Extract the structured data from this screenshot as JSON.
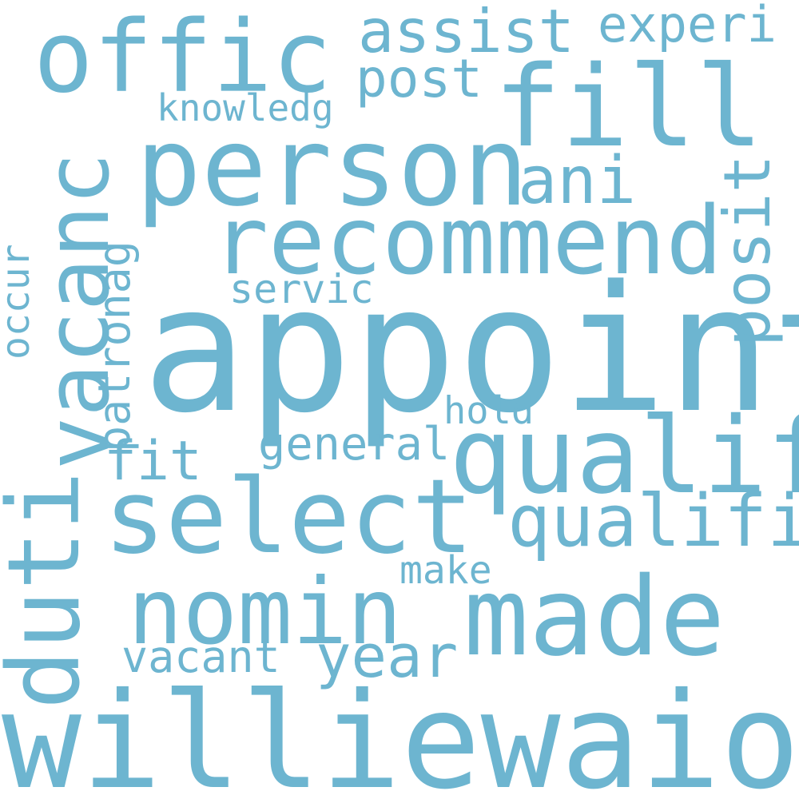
{
  "color": "#6db5d0",
  "words": {
    "appoint": "appoint",
    "williewaiola": "williewaiola",
    "vacanc": "vacanc",
    "offic": "offic",
    "person": "person",
    "fill": "fill",
    "recommend": "recommend",
    "qualif": "qualif",
    "select": "select",
    "nomin": "nomin",
    "made": "made",
    "duti": "duti",
    "assist": "assist",
    "experi": "experi",
    "post": "post",
    "ani": "ani",
    "posit": "posit",
    "qualifi": "qualifi",
    "knowledg": "knowledg",
    "servic": "servic",
    "patronag": "patronag",
    "occur": "occur",
    "fit": "fit",
    "general": "general",
    "hold": "hold",
    "make": "make",
    "year": "year",
    "vacant": "vacant"
  }
}
